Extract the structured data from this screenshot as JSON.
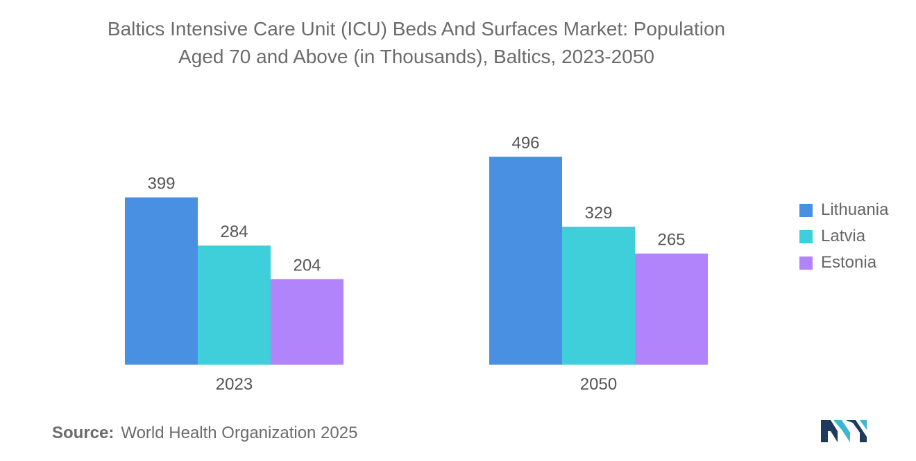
{
  "title": {
    "line1": "Baltics Intensive Care Unit (ICU) Beds And Surfaces Market: Population",
    "line2": "Aged 70 and Above (in Thousands), Baltics, 2023-2050"
  },
  "chart_data": {
    "type": "bar",
    "title": "Baltics Intensive Care Unit (ICU) Beds And Surfaces Market: Population Aged 70 and Above (in Thousands), Baltics, 2023-2050",
    "categories": [
      "2023",
      "2050"
    ],
    "series": [
      {
        "name": "Lithuania",
        "color": "#4a90e2",
        "values": [
          399,
          496
        ]
      },
      {
        "name": "Latvia",
        "color": "#3ecfdb",
        "values": [
          284,
          329
        ]
      },
      {
        "name": "Estonia",
        "color": "#b184fc",
        "values": [
          204,
          265
        ]
      }
    ],
    "xlabel": "",
    "ylabel": "",
    "ylim": [
      0,
      500
    ],
    "grid": false,
    "legend_position": "right"
  },
  "source": {
    "label": "Source:",
    "text": "World Health Organization 2025"
  },
  "logo": {
    "icon": "mordor-logo-icon",
    "colors": [
      "#1f3a5f",
      "#39b8d0"
    ]
  }
}
